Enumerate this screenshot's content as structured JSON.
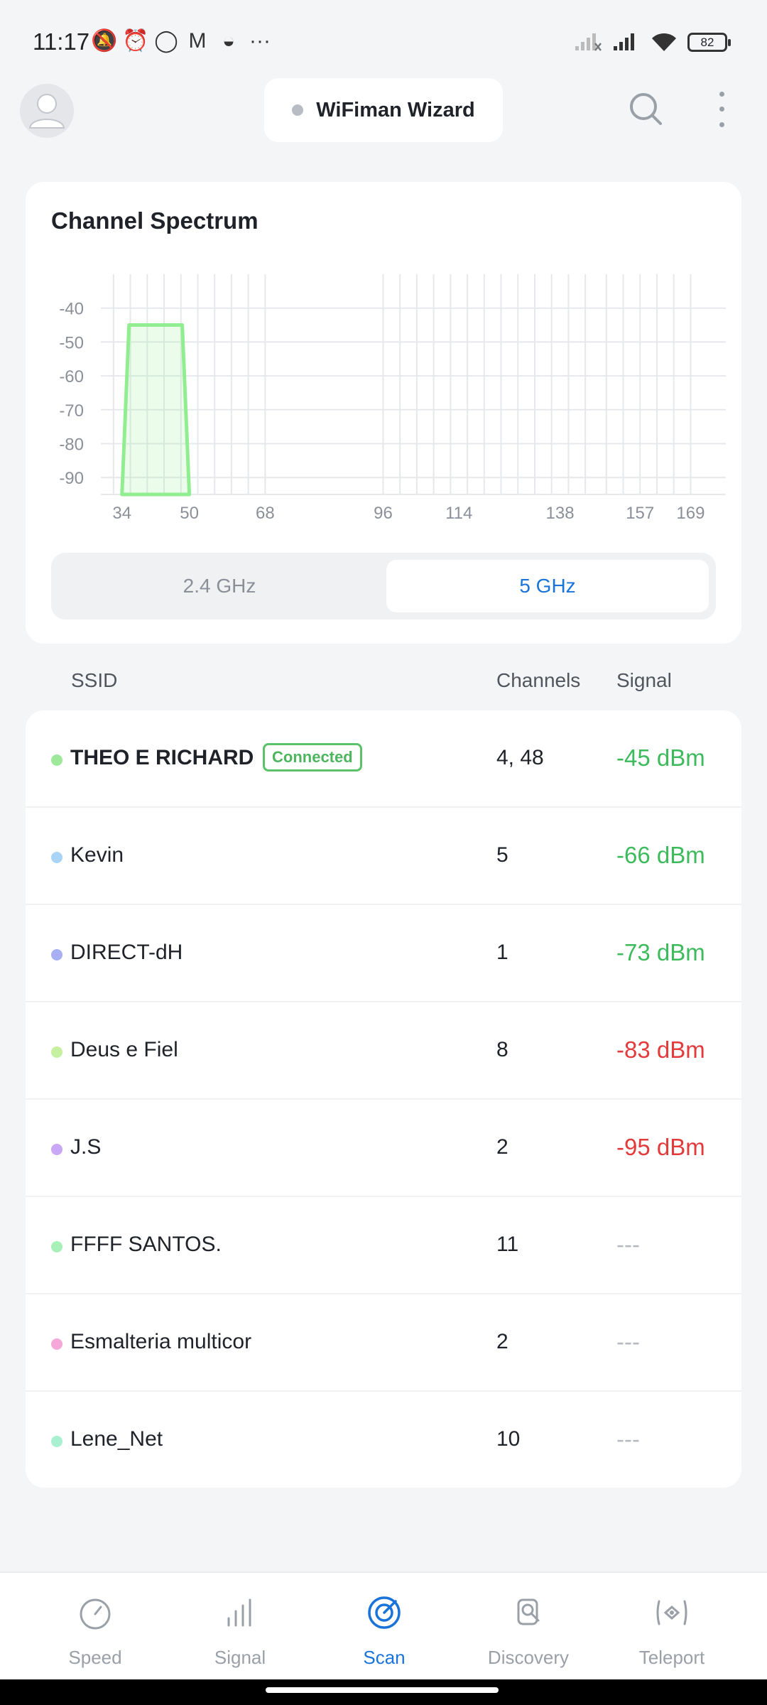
{
  "status_bar": {
    "time": "11:17",
    "battery": "82",
    "overflow": "···"
  },
  "header": {
    "title": "WiFiman Wizard"
  },
  "spectrum": {
    "title": "Channel Spectrum",
    "bands": [
      "2.4 GHz",
      "5 GHz"
    ],
    "selected_band": "5 GHz"
  },
  "chart_data": {
    "type": "area",
    "y_ticks": [
      "-40",
      "-50",
      "-60",
      "-70",
      "-80",
      "-90"
    ],
    "ylim": [
      -95,
      -30
    ],
    "x_labels": [
      {
        "label": "34",
        "channel": 34
      },
      {
        "label": "50",
        "channel": 50
      },
      {
        "label": "68",
        "channel": 68
      },
      {
        "label": "96",
        "channel": 96
      },
      {
        "label": "114",
        "channel": 114
      },
      {
        "label": "138",
        "channel": 138
      },
      {
        "label": "157",
        "channel": 157
      },
      {
        "label": "169",
        "channel": 169
      }
    ],
    "series": [
      {
        "from_channel": 34,
        "to_channel": 50,
        "signal": -45,
        "color": "#90ee90"
      }
    ]
  },
  "table": {
    "headers": {
      "ssid": "SSID",
      "channels": "Channels",
      "signal": "Signal"
    },
    "rows": [
      {
        "ssid": "THEO E RICHARD",
        "badge": "Connected",
        "channels": "4, 48",
        "signal": "-45 dBm",
        "level": "good",
        "color": "#9ee89a"
      },
      {
        "ssid": "Kevin",
        "badge": "",
        "channels": "5",
        "signal": "-66 dBm",
        "level": "good",
        "color": "#a9d4f5"
      },
      {
        "ssid": "DIRECT-dH",
        "badge": "",
        "channels": "1",
        "signal": "-73 dBm",
        "level": "good",
        "color": "#a7b0f5"
      },
      {
        "ssid": "Deus e Fiel",
        "badge": "",
        "channels": "8",
        "signal": "-83 dBm",
        "level": "bad",
        "color": "#c4f0a0"
      },
      {
        "ssid": "J.S",
        "badge": "",
        "channels": "2",
        "signal": "-95 dBm",
        "level": "bad",
        "color": "#c9a7f5"
      },
      {
        "ssid": "FFFF SANTOS.",
        "badge": "",
        "channels": "11",
        "signal": "---",
        "level": "none",
        "color": "#a8f0b8"
      },
      {
        "ssid": "Esmalteria multicor",
        "badge": "",
        "channels": "2",
        "signal": "---",
        "level": "none",
        "color": "#f5a8d8"
      },
      {
        "ssid": "Lene_Net",
        "badge": "",
        "channels": "10",
        "signal": "---",
        "level": "none",
        "color": "#a8f0d0"
      }
    ]
  },
  "nav": {
    "items": [
      {
        "label": "Speed",
        "icon": "speed-gauge-icon",
        "active": false
      },
      {
        "label": "Signal",
        "icon": "signal-bars-icon",
        "active": false
      },
      {
        "label": "Scan",
        "icon": "radar-scan-icon",
        "active": true
      },
      {
        "label": "Discovery",
        "icon": "discovery-device-icon",
        "active": false
      },
      {
        "label": "Teleport",
        "icon": "teleport-icon",
        "active": false
      }
    ],
    "accent": "#1a73d9"
  }
}
